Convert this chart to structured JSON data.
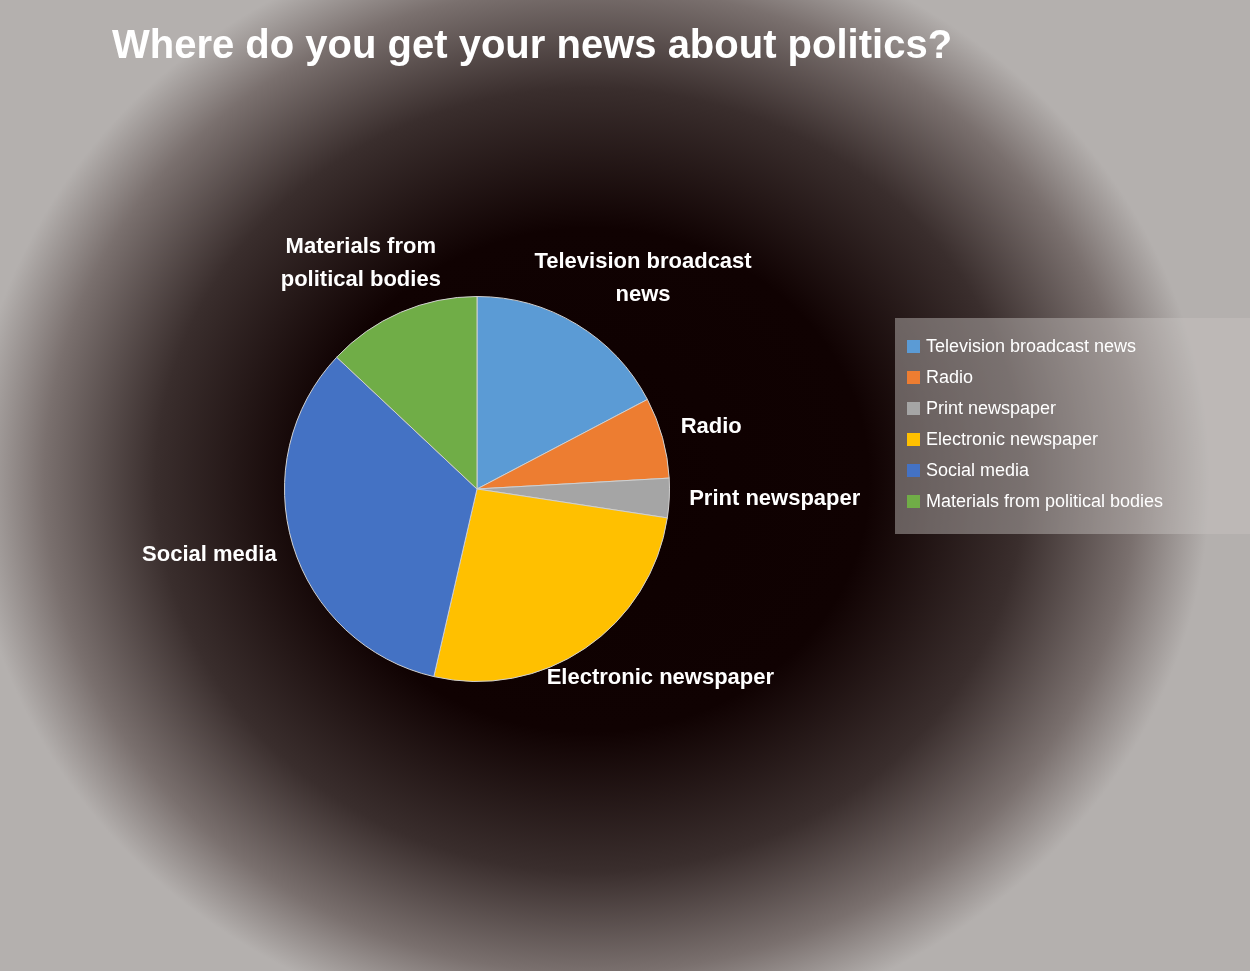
{
  "chart_data": {
    "type": "pie",
    "title": "Where do you get your news about politics?",
    "categories": [
      "Television broadcast news",
      "Radio",
      "Print newspaper",
      "Electronic newspaper",
      "Social media",
      "Materials from political bodies"
    ],
    "values": [
      17.3,
      6.8,
      3.3,
      26.2,
      33.4,
      13
    ],
    "colors": [
      "#5b9bd5",
      "#ed7d31",
      "#a5a5a5",
      "#ffc000",
      "#4472c4",
      "#70ad47"
    ],
    "legend": "right"
  }
}
